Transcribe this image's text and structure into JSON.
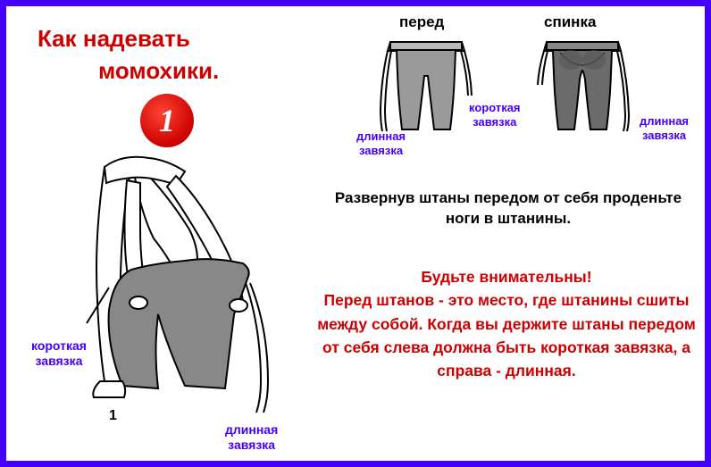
{
  "colors": {
    "border": "#4400ff",
    "bg": "#ffffff",
    "red": "#cc0000",
    "purple": "#4400ff",
    "black": "#000000",
    "gray_fill": "#9a9a9a",
    "gray_dark": "#6b6b6b"
  },
  "title": {
    "line1": "Как надевать",
    "line2": "момохики."
  },
  "step": {
    "number": "1"
  },
  "fig_number": "1",
  "labels": {
    "front": "перед",
    "back": "спинка",
    "long_tie": "длинная",
    "long_tie2": "завязка",
    "short_tie": "короткая",
    "short_tie2": "завязка"
  },
  "instruction": "Развернув штаны передом от себя проденьте ноги в штанины.",
  "warning": "Будьте внимательны!\nПеред штанов - это место, где штанины сшиты между собой. Когда вы держите штаны передом от себя слева должна быть короткая завязка, а справа - длинная.",
  "illustrations": {
    "pants_front": {
      "fill": "#9a9a9a",
      "stroke": "#000000"
    },
    "pants_back": {
      "fill": "#6b6b6b",
      "stroke": "#000000"
    },
    "main_figure": {
      "fill": "#9a9a9a",
      "stroke": "#000000"
    }
  }
}
